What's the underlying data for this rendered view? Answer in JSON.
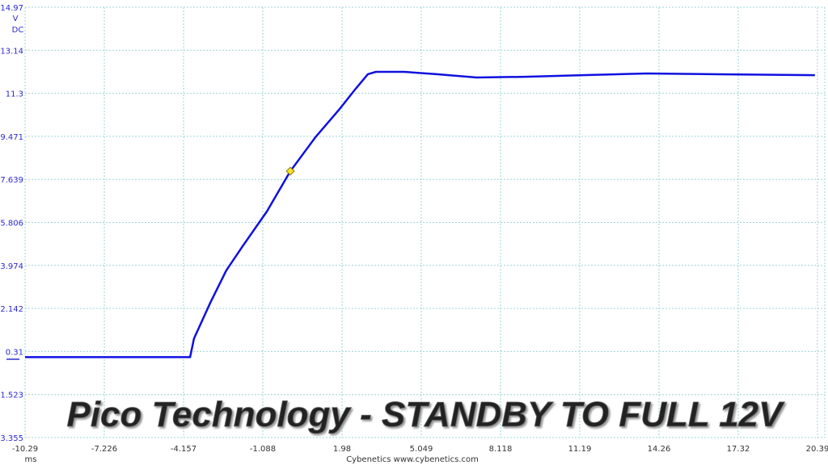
{
  "chart_data": {
    "type": "line",
    "title": "Pico Technology - STANDBY TO FULL 12V",
    "ylabel_unit": "V",
    "ylabel_coupling": "DC",
    "xlabel_unit": "ms",
    "footer": "Cybenetics  www.cybenetics.com",
    "xlim": [
      -10.29,
      20.39
    ],
    "ylim": [
      -3.355,
      14.97
    ],
    "x_ticks": [
      "-10.29",
      "-7.226",
      "-4.157",
      "-1.088",
      "1.98",
      "5.049",
      "8.118",
      "11.19",
      "14.26",
      "17.32",
      "20.39"
    ],
    "y_ticks": [
      "14.97",
      "13.14",
      "11.3",
      "9.471",
      "7.639",
      "5.806",
      "3.974",
      "2.142",
      "0.31",
      "-1.523",
      "-3.355"
    ],
    "grid": true,
    "line_color": "#1010e0",
    "marker": {
      "x": -0.02,
      "y": 7.99,
      "color": "#f5e020"
    },
    "series": [
      {
        "x": [
          -10.29,
          -3.9,
          -3.75,
          -3.12,
          -2.5,
          -1.87,
          -0.93,
          -0.02,
          0.95,
          1.89,
          2.51,
          2.98,
          3.29,
          4.39,
          5.64,
          7.2,
          9.08,
          11.28,
          13.78,
          16.28,
          20.29
        ],
        "y": [
          0.07,
          0.07,
          0.86,
          2.38,
          3.76,
          4.79,
          6.27,
          7.99,
          9.43,
          10.64,
          11.5,
          12.12,
          12.22,
          12.22,
          12.12,
          11.98,
          12.01,
          12.08,
          12.15,
          12.12,
          12.08
        ]
      }
    ]
  }
}
